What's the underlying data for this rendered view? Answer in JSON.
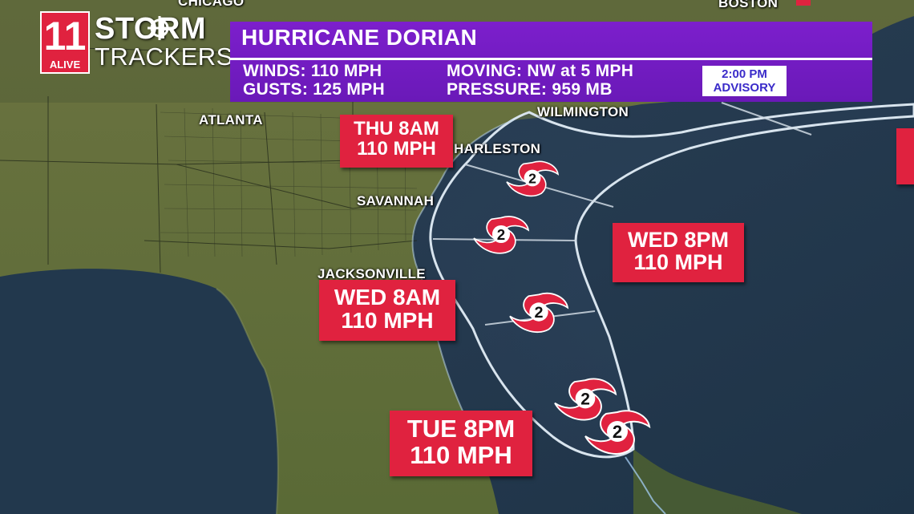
{
  "branding": {
    "station_number": "11",
    "station_name": "ALIVE",
    "brand_line1": "STORM",
    "brand_line2": "TRACKERS"
  },
  "banner": {
    "title": "HURRICANE DORIAN",
    "winds": "WINDS: 110 MPH",
    "gusts": "GUSTS: 125 MPH",
    "moving": "MOVING: NW at 5 MPH",
    "pressure": "PRESSURE: 959 MB",
    "advisory_time": "2:00 PM",
    "advisory_label": "ADVISORY",
    "color": "#7c1fcc"
  },
  "cities": {
    "chicago": "CHICAGO",
    "boston": "BOSTON",
    "wilmington": "WILMINGTON",
    "atlanta": "ATLANTA",
    "charleston": "HARLESTON",
    "savannah": "SAVANNAH",
    "jacksonville": "JACKSONVILLE"
  },
  "forecast_points": [
    {
      "time": "THU 8AM",
      "wind": "110 MPH"
    },
    {
      "time": "WED 8PM",
      "wind": "110 MPH"
    },
    {
      "time": "WED 8AM",
      "wind": "110 MPH"
    },
    {
      "time": "TUE 8PM",
      "wind": "110 MPH"
    }
  ],
  "storm_icons": [
    {
      "category": "2"
    },
    {
      "category": "2"
    },
    {
      "category": "2"
    },
    {
      "category": "2"
    },
    {
      "category": "2"
    }
  ],
  "colors": {
    "label_red": "#e0223f",
    "ocean": "#24384a",
    "land": "#5b6b3a",
    "cone_outline": "#d8e4ee"
  }
}
